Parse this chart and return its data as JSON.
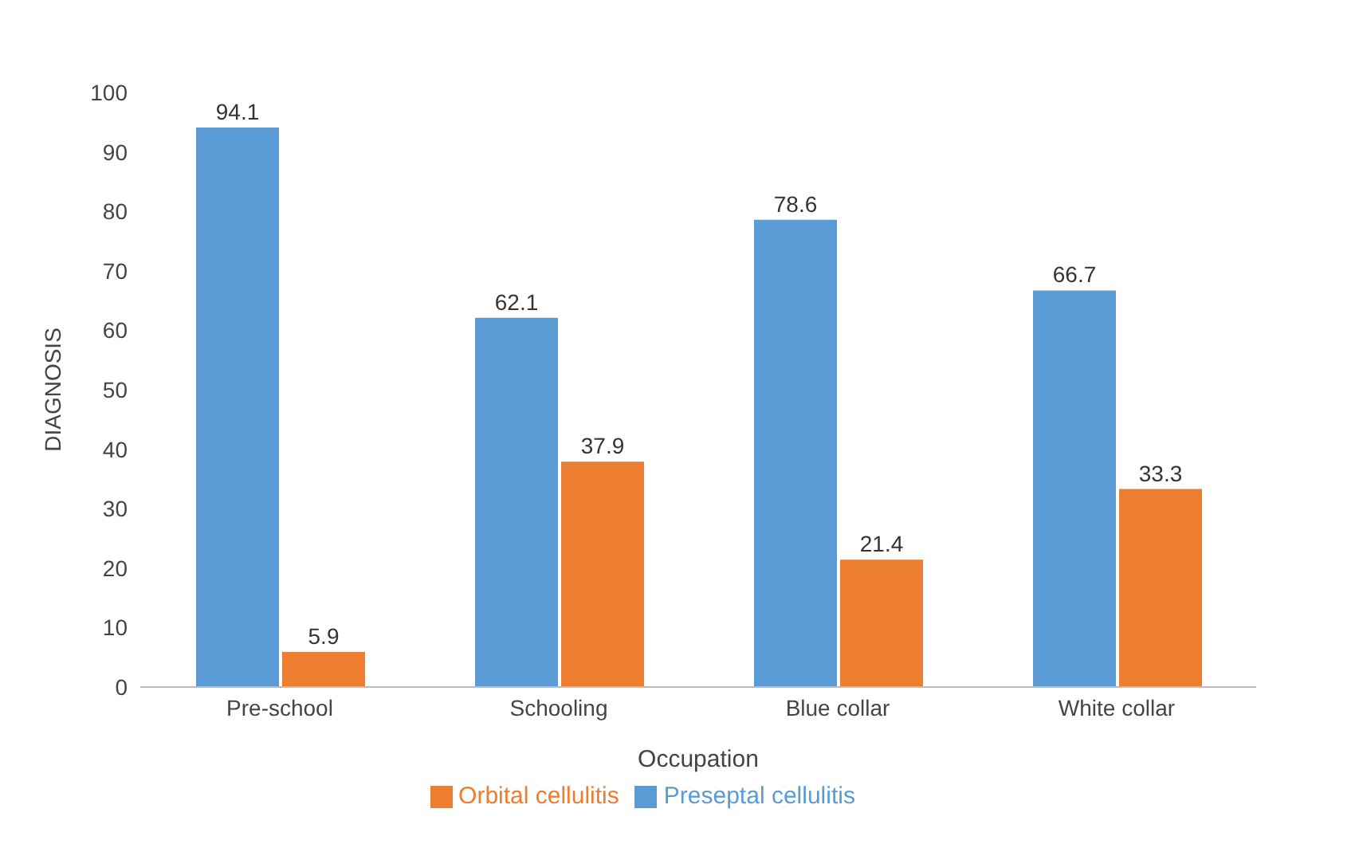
{
  "chart_data": {
    "type": "bar",
    "xlabel": "Occupation",
    "ylabel": "DIAGNOSIS",
    "categories": [
      "Pre-school",
      "Schooling",
      "Blue collar",
      "White collar"
    ],
    "series": [
      {
        "name": "Preseptal cellulitis",
        "color": "#5b9bd5",
        "values": [
          94.1,
          62.1,
          78.6,
          66.7
        ]
      },
      {
        "name": "Orbital cellulitis",
        "color": "#ed7d31",
        "values": [
          5.9,
          37.9,
          21.4,
          33.3
        ]
      }
    ],
    "ylim": [
      0,
      100
    ],
    "yticks": [
      0,
      10,
      20,
      30,
      40,
      50,
      60,
      70,
      80,
      90,
      100
    ],
    "data_labels": true,
    "legend": "bottom",
    "grid": false
  }
}
